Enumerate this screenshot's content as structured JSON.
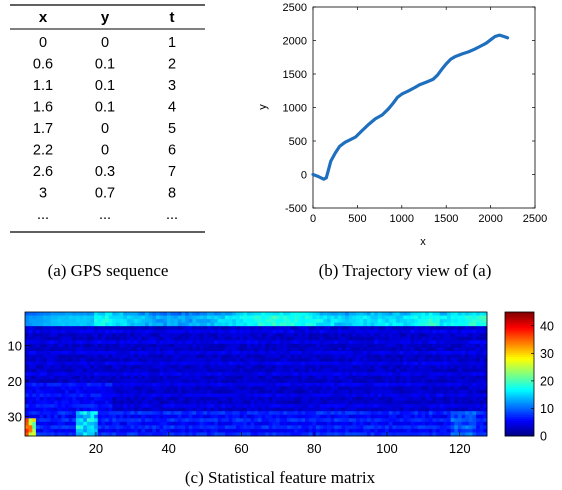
{
  "table": {
    "headers": [
      "x",
      "y",
      "t"
    ],
    "rows": [
      [
        "0",
        "0",
        "1"
      ],
      [
        "0.6",
        "0.1",
        "2"
      ],
      [
        "1.1",
        "0.1",
        "3"
      ],
      [
        "1.6",
        "0.1",
        "4"
      ],
      [
        "1.7",
        "0",
        "5"
      ],
      [
        "2.2",
        "0",
        "6"
      ],
      [
        "2.6",
        "0.3",
        "7"
      ],
      [
        "3",
        "0.7",
        "8"
      ],
      [
        "...",
        "...",
        "..."
      ]
    ]
  },
  "captions": {
    "a": "(a)  GPS sequence",
    "b": "(b)  Trajectory view of (a)",
    "c": "(c)  Statistical feature matrix"
  },
  "chart_data": [
    {
      "type": "table",
      "columns": [
        "x",
        "y",
        "t"
      ],
      "rows": [
        [
          0,
          0,
          1
        ],
        [
          0.6,
          0.1,
          2
        ],
        [
          1.1,
          0.1,
          3
        ],
        [
          1.6,
          0.1,
          4
        ],
        [
          1.7,
          0,
          5
        ],
        [
          2.2,
          0,
          6
        ],
        [
          2.6,
          0.3,
          7
        ],
        [
          3,
          0.7,
          8
        ]
      ]
    },
    {
      "type": "line",
      "xlabel": "x",
      "ylabel": "y",
      "xlim": [
        0,
        2500
      ],
      "ylim": [
        -500,
        2500
      ],
      "xticks": [
        0,
        500,
        1000,
        1500,
        2000,
        2500
      ],
      "yticks": [
        -500,
        0,
        500,
        1000,
        1500,
        2000,
        2500
      ],
      "color": "#1f6fbf",
      "series": [
        {
          "x": [
            0,
            60,
            120,
            150,
            170,
            200,
            250,
            300,
            360,
            420,
            480,
            550,
            620,
            700,
            780,
            850,
            900,
            950,
            1000,
            1080,
            1150,
            1200,
            1280,
            1350,
            1400,
            1450,
            1500,
            1550,
            1600,
            1680,
            1750,
            1820,
            1880,
            1950,
            2000,
            2050,
            2100,
            2150,
            2190
          ],
          "y": [
            0,
            -30,
            -70,
            -50,
            50,
            200,
            320,
            420,
            480,
            520,
            560,
            650,
            740,
            830,
            890,
            980,
            1060,
            1150,
            1200,
            1250,
            1300,
            1340,
            1380,
            1420,
            1480,
            1570,
            1650,
            1720,
            1760,
            1800,
            1830,
            1870,
            1910,
            1960,
            2010,
            2060,
            2080,
            2060,
            2040
          ]
        }
      ]
    },
    {
      "type": "heatmap",
      "rows": 35,
      "columns": 127,
      "colormap": "jet",
      "xticks": [
        20,
        40,
        60,
        80,
        100,
        120
      ],
      "yticks": [
        10,
        20,
        30
      ],
      "colorbar": {
        "min": 0,
        "max": 45,
        "ticks": [
          0,
          10,
          20,
          30,
          40
        ]
      },
      "description_values": {
        "rows_1_4_typical": 14,
        "rows_5_28_typical": 2,
        "rows_29_35_typical": 6,
        "hot_spot_rows_31_35_cols_1_3": 42
      }
    }
  ]
}
